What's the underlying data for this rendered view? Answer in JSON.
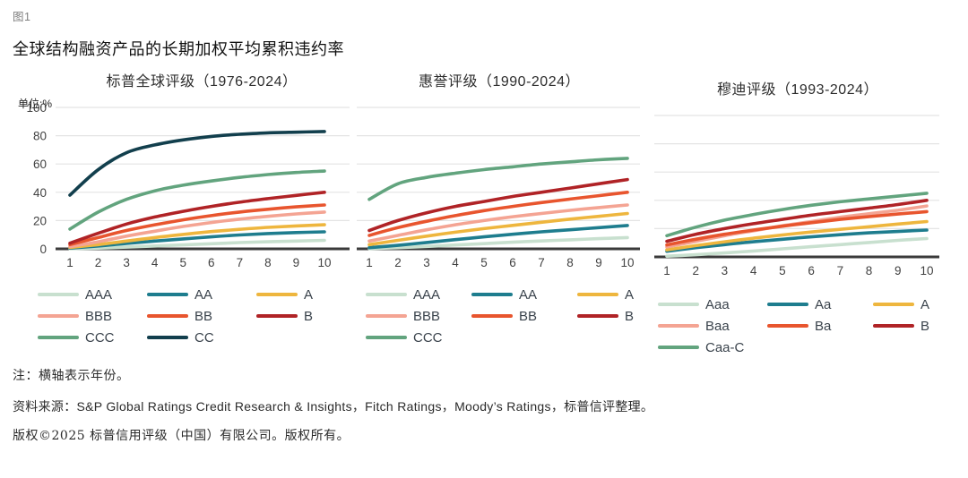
{
  "figure_label": "图1",
  "title": "全球结构融资产品的长期加权平均累积违约率",
  "unit_label": "单位:%",
  "notes": {
    "note": "注：横轴表示年份。",
    "source": "资料来源：S&P Global Ratings Credit Research & Insights，Fitch Ratings，Moody’s Ratings，标普信评整理。",
    "copyright": "版权©2025 标普信用评级（中国）有限公司。版权所有。"
  },
  "colors": {
    "grid": "#e4e4e4",
    "baseline": "#3a3a3a",
    "axis_text": "#424242",
    "aaa_light_green": "#c8e0cf",
    "aa_teal": "#1e7d8e",
    "a_amber": "#eeb63e",
    "bbb_salmon": "#f4a493",
    "bb_orange_red": "#e8552e",
    "b_dark_red": "#b02326",
    "ccc_green": "#62a47e",
    "cc_dark_teal": "#123f4d"
  },
  "chart_data": [
    {
      "type": "line",
      "title": "标普全球评级（1976-2024）",
      "xlabel": "",
      "ylabel": "单位:%",
      "x": [
        1,
        2,
        3,
        4,
        5,
        6,
        7,
        8,
        9,
        10
      ],
      "ylim": [
        0,
        100
      ],
      "yticks": [
        100,
        80,
        60,
        40,
        20,
        0
      ],
      "grid": true,
      "legend_position": "bottom",
      "series": [
        {
          "name": "AAA",
          "color": "#c8e0cf",
          "values": [
            0.1,
            0.5,
            1.2,
            2,
            2.8,
            3.6,
            4.4,
            5,
            5.5,
            6
          ]
        },
        {
          "name": "AA",
          "color": "#1e7d8e",
          "values": [
            0.5,
            2,
            3.8,
            5.5,
            7,
            8.5,
            9.8,
            10.8,
            11.5,
            12
          ]
        },
        {
          "name": "A",
          "color": "#eeb63e",
          "values": [
            1,
            3,
            5.5,
            8,
            10.2,
            12.2,
            13.8,
            15.2,
            16.2,
            17
          ]
        },
        {
          "name": "BBB",
          "color": "#f4a493",
          "values": [
            1.5,
            5,
            9,
            12.5,
            15.8,
            18.6,
            21,
            23,
            24.7,
            26
          ]
        },
        {
          "name": "BB",
          "color": "#e8552e",
          "values": [
            3,
            8,
            13,
            17,
            20.5,
            23.5,
            26,
            28,
            29.7,
            31
          ]
        },
        {
          "name": "B",
          "color": "#b02326",
          "values": [
            4,
            11,
            17.5,
            22.5,
            26.5,
            30,
            33,
            35.5,
            37.8,
            40
          ]
        },
        {
          "name": "CCC",
          "color": "#62a47e",
          "values": [
            14,
            26,
            35,
            41,
            45,
            48,
            50.5,
            52.5,
            54,
            55
          ]
        },
        {
          "name": "CC",
          "color": "#123f4d",
          "values": [
            38,
            56,
            68,
            73.5,
            77,
            79.5,
            81,
            82,
            82.5,
            83
          ]
        }
      ]
    },
    {
      "type": "line",
      "title": "惠誉评级（1990-2024）",
      "xlabel": "",
      "ylabel": "单位:%",
      "x": [
        1,
        2,
        3,
        4,
        5,
        6,
        7,
        8,
        9,
        10
      ],
      "ylim": [
        0,
        100
      ],
      "yticks": [
        100,
        80,
        60,
        40,
        20,
        0
      ],
      "grid": true,
      "legend_position": "bottom",
      "series": [
        {
          "name": "AAA",
          "color": "#c8e0cf",
          "values": [
            0.2,
            0.8,
            1.7,
            2.7,
            3.7,
            4.7,
            5.6,
            6.4,
            7.2,
            8
          ]
        },
        {
          "name": "AA",
          "color": "#1e7d8e",
          "values": [
            0.8,
            2.5,
            4.5,
            6.5,
            8.5,
            10.3,
            12,
            13.5,
            15,
            16.5
          ]
        },
        {
          "name": "A",
          "color": "#eeb63e",
          "values": [
            3,
            6,
            9,
            11.8,
            14.3,
            16.6,
            18.8,
            21,
            23,
            25
          ]
        },
        {
          "name": "BBB",
          "color": "#f4a493",
          "values": [
            5.5,
            9.5,
            13.5,
            17,
            20,
            22.7,
            25,
            27.2,
            29.2,
            31
          ]
        },
        {
          "name": "BB",
          "color": "#e8552e",
          "values": [
            9.5,
            15,
            19.5,
            23.5,
            27,
            30,
            32.7,
            35.2,
            37.6,
            40
          ]
        },
        {
          "name": "B",
          "color": "#b02326",
          "values": [
            13,
            20,
            25.5,
            30,
            33.5,
            37,
            40,
            43,
            46,
            49
          ]
        },
        {
          "name": "CCC",
          "color": "#62a47e",
          "values": [
            35,
            46,
            50.5,
            53.5,
            56,
            58,
            60,
            61.5,
            63,
            64
          ]
        }
      ]
    },
    {
      "type": "line",
      "title": "穆迪评级（1993-2024）",
      "xlabel": "",
      "ylabel": "单位:%",
      "x": [
        1,
        2,
        3,
        4,
        5,
        6,
        7,
        8,
        9,
        10
      ],
      "ylim": [
        0,
        100
      ],
      "yticks": [
        100,
        80,
        60,
        40,
        20,
        0
      ],
      "grid": true,
      "legend_position": "bottom",
      "series": [
        {
          "name": "Aaa",
          "color": "#c8e0cf",
          "values": [
            0.5,
            1.5,
            2.8,
            4.2,
            5.7,
            7.2,
            8.7,
            10.2,
            11.7,
            13
          ]
        },
        {
          "name": "Aa",
          "color": "#1e7d8e",
          "values": [
            4,
            6.5,
            8.7,
            10.7,
            12.5,
            14.2,
            15.7,
            17,
            18,
            19
          ]
        },
        {
          "name": "A",
          "color": "#eeb63e",
          "values": [
            5,
            8,
            10.7,
            13.2,
            15.5,
            17.6,
            19.5,
            21.3,
            23.2,
            25
          ]
        },
        {
          "name": "Baa",
          "color": "#f4a493",
          "values": [
            7,
            11,
            15,
            18.5,
            22,
            25,
            28,
            30.5,
            33,
            36
          ]
        },
        {
          "name": "Ba",
          "color": "#e8552e",
          "values": [
            8.5,
            12.5,
            16,
            19,
            21.7,
            24.2,
            26.5,
            28.5,
            30.3,
            32
          ]
        },
        {
          "name": "B",
          "color": "#b02326",
          "values": [
            11,
            16,
            20,
            23.5,
            26.5,
            29.5,
            32,
            34.5,
            37,
            40
          ]
        },
        {
          "name": "Caa-C",
          "color": "#62a47e",
          "values": [
            15,
            21,
            26,
            30,
            33.5,
            36.5,
            39,
            41,
            43,
            45
          ]
        }
      ]
    }
  ]
}
